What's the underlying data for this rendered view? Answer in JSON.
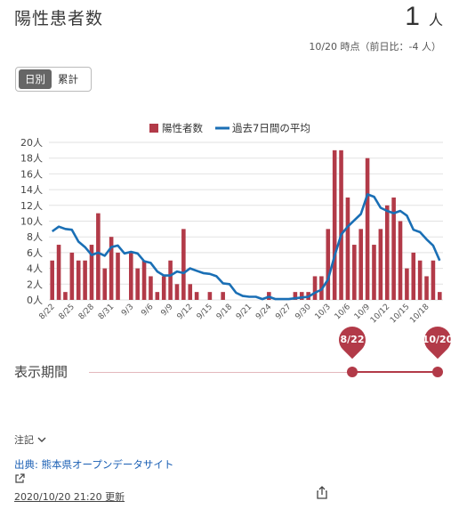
{
  "header": {
    "title": "陽性患者数",
    "count": "1",
    "unit": "人",
    "date_info": "10/20 時点（前日比：-4 人）"
  },
  "tabs": [
    {
      "label": "日別",
      "active": true
    },
    {
      "label": "累計",
      "active": false
    }
  ],
  "chart_data": {
    "type": "bar",
    "legend": [
      {
        "name": "陽性者数",
        "color": "#b23a48",
        "kind": "bar"
      },
      {
        "name": "過去7日間の平均",
        "color": "#1a6fb5",
        "kind": "line"
      }
    ],
    "y_ticks": [
      "0人",
      "2人",
      "4人",
      "6人",
      "8人",
      "10人",
      "12人",
      "14人",
      "16人",
      "18人",
      "20人"
    ],
    "ylim": [
      0,
      20
    ],
    "x_tick_labels": [
      "8/22",
      "8/25",
      "8/28",
      "8/31",
      "9/3",
      "9/6",
      "9/9",
      "9/12",
      "9/15",
      "9/18",
      "9/21",
      "9/24",
      "9/27",
      "9/30",
      "10/3",
      "10/6",
      "10/9",
      "10/12",
      "10/15",
      "10/18"
    ],
    "categories": [
      "8/22",
      "8/23",
      "8/24",
      "8/25",
      "8/26",
      "8/27",
      "8/28",
      "8/29",
      "8/30",
      "8/31",
      "9/1",
      "9/2",
      "9/3",
      "9/4",
      "9/5",
      "9/6",
      "9/7",
      "9/8",
      "9/9",
      "9/10",
      "9/11",
      "9/12",
      "9/13",
      "9/14",
      "9/15",
      "9/16",
      "9/17",
      "9/18",
      "9/19",
      "9/20",
      "9/21",
      "9/22",
      "9/23",
      "9/24",
      "9/25",
      "9/26",
      "9/27",
      "9/28",
      "9/29",
      "9/30",
      "10/1",
      "10/2",
      "10/3",
      "10/4",
      "10/5",
      "10/6",
      "10/7",
      "10/8",
      "10/9",
      "10/10",
      "10/11",
      "10/12",
      "10/13",
      "10/14",
      "10/15",
      "10/16",
      "10/17",
      "10/18",
      "10/19",
      "10/20"
    ],
    "series": [
      {
        "name": "陽性者数",
        "values": [
          5,
          7,
          1,
          6,
          5,
          5,
          7,
          11,
          4,
          8,
          6,
          0,
          6,
          4,
          5,
          3,
          1,
          3,
          5,
          2,
          9,
          2,
          1,
          0,
          1,
          0,
          1,
          0,
          0,
          0,
          0,
          0,
          0,
          1,
          0,
          0,
          0,
          1,
          1,
          1,
          3,
          3,
          9,
          19,
          19,
          13,
          7,
          9,
          18,
          7,
          9,
          12,
          13,
          10,
          4,
          6,
          5,
          3,
          5,
          1
        ]
      },
      {
        "name": "過去7日間の平均",
        "values": [
          8.7,
          9.3,
          9.0,
          8.9,
          7.4,
          6.7,
          5.7,
          6.0,
          5.6,
          6.7,
          6.9,
          5.9,
          6.1,
          5.9,
          4.9,
          4.7,
          3.6,
          3.1,
          3.1,
          3.6,
          3.4,
          4.0,
          3.7,
          3.4,
          3.3,
          3.0,
          2.1,
          2.0,
          0.9,
          0.5,
          0.4,
          0.4,
          0.1,
          0.4,
          0.1,
          0.1,
          0.1,
          0.2,
          0.3,
          0.4,
          0.9,
          1.3,
          2.6,
          5.6,
          8.3,
          9.3,
          10.1,
          10.9,
          13.4,
          13.1,
          11.7,
          11.3,
          11.0,
          11.3,
          10.7,
          8.9,
          8.6,
          7.7,
          6.9,
          5.0
        ]
      }
    ]
  },
  "period": {
    "label": "表示期間",
    "start": "8/22",
    "end": "10/20"
  },
  "footer": {
    "notes_label": "注記",
    "source_label": "出典: 熊本県オープンデータサイト",
    "updated_label": "2020/10/20 21:20 更新"
  }
}
